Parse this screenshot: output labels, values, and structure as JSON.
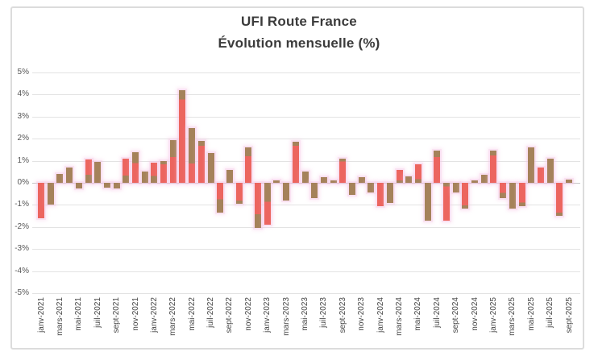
{
  "window": {
    "background": "#ffffff",
    "frame_border": "#dcdcdc"
  },
  "chart": {
    "title": "UFI Route France",
    "subtitle": "Évolution mensuelle (%)"
  },
  "colors": {
    "bar_red": "#ec655f",
    "bar_brown": "#a5825a",
    "halo_pink": "#f6c6e5",
    "gridline": "#e3e3e3",
    "zero_line": "#c6c6c6",
    "title_text": "#3b3b3b",
    "y_axis_text": "#565656",
    "x_axis_text": "#454545"
  },
  "chart_data": {
    "type": "bar",
    "title": "UFI Route France",
    "subtitle": "Évolution mensuelle (%)",
    "unit": "%",
    "grid": true,
    "legend": "none",
    "ylim": [
      -5,
      5
    ],
    "ytick_step": 1,
    "ytick_labels": [
      "5%",
      "4%",
      "3%",
      "2%",
      "1%",
      "0%",
      "-1%",
      "-2%",
      "-3%",
      "-4%",
      "-5%"
    ],
    "xtick_every": 2,
    "categories": [
      "janv-2021",
      "févr-2021",
      "mars-2021",
      "avr-2021",
      "mai-2021",
      "juin-2021",
      "juil-2021",
      "août-2021",
      "sept-2021",
      "oct-2021",
      "nov-2021",
      "déc-2021",
      "janv-2022",
      "févr-2022",
      "mars-2022",
      "avr-2022",
      "mai-2022",
      "juin-2022",
      "juil-2022",
      "août-2022",
      "sept-2022",
      "oct-2022",
      "nov-2022",
      "déc-2022",
      "janv-2023",
      "févr-2023",
      "mars-2023",
      "avr-2023",
      "mai-2023",
      "juin-2023",
      "juil-2023",
      "août-2023",
      "sept-2023",
      "oct-2023",
      "nov-2023",
      "déc-2023",
      "janv-2024",
      "févr-2024",
      "mars-2024",
      "avr-2024",
      "mai-2024",
      "juin-2024",
      "juil-2024",
      "août-2024",
      "sept-2024",
      "oct-2024",
      "nov-2024",
      "déc-2024",
      "janv-2025",
      "févr-2025",
      "mars-2025",
      "avr-2025",
      "mai-2025",
      "juin-2025",
      "juil-2025",
      "août-2025",
      "sept-2025"
    ],
    "values": [
      -1.6,
      -1.0,
      0.4,
      0.7,
      -0.25,
      1.05,
      0.95,
      -0.2,
      -0.25,
      1.1,
      1.4,
      0.5,
      0.9,
      1.0,
      1.95,
      4.2,
      2.5,
      1.9,
      1.35,
      -1.35,
      0.6,
      -0.95,
      1.6,
      -2.05,
      -1.9,
      0.1,
      -0.8,
      1.85,
      0.5,
      -0.7,
      0.25,
      0.1,
      1.1,
      -0.55,
      0.25,
      -0.45,
      -1.05,
      -0.9,
      0.6,
      0.3,
      0.85,
      -1.7,
      1.45,
      -1.7,
      -0.45,
      -1.15,
      0.1,
      0.35,
      1.45,
      -0.7,
      -1.15,
      -1.05,
      1.6,
      0.7,
      1.1,
      -1.5,
      0.15
    ],
    "bar_styles": [
      "r",
      "b",
      "b",
      "b",
      "b",
      "mb0.35",
      "b",
      "b",
      "b",
      "mb0.3",
      "m0.35",
      "b",
      "mb0.35",
      "m0.15",
      "m0.4",
      "m0.1",
      "m0.65",
      "m0.12",
      "b",
      "m0.45",
      "b",
      "m0.15",
      "m0.25",
      "m0.3",
      "mb0.45",
      "b",
      "b",
      "m0.1",
      "b",
      "b",
      "b",
      "b",
      "m0.12",
      "b",
      "b",
      "b",
      "r",
      "b",
      "mb0.2",
      "b",
      "mb0.2",
      "b",
      "m0.2",
      "mb0.1",
      "b",
      "m0.12",
      "b",
      "b",
      "m0.15",
      "m0.35",
      "b",
      "m0.15",
      "b",
      "r",
      "b",
      "m0.1",
      "b"
    ]
  }
}
